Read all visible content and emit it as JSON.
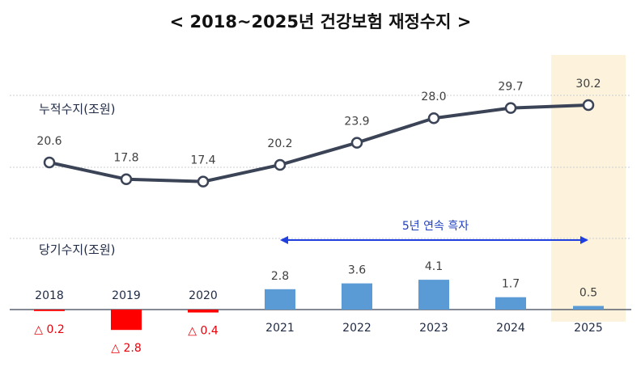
{
  "title": "<  2018~2025년  건강보험  재정수지  >",
  "chart_data": [
    {
      "type": "line",
      "label": "누적수지(조원)",
      "x": [
        "2018",
        "2019",
        "2020",
        "2021",
        "2022",
        "2023",
        "2024",
        "2025"
      ],
      "values": [
        20.6,
        17.8,
        17.4,
        20.2,
        23.9,
        28.0,
        29.7,
        30.2
      ],
      "value_labels": [
        "20.6",
        "17.8",
        "17.4",
        "20.2",
        "23.9",
        "28.0",
        "29.7",
        "30.2"
      ],
      "grid": true
    },
    {
      "type": "bar",
      "label": "당기수지(조원)",
      "categories": [
        "2018",
        "2019",
        "2020",
        "2021",
        "2022",
        "2023",
        "2024",
        "2025"
      ],
      "values": [
        -0.2,
        -2.8,
        -0.4,
        2.8,
        3.6,
        4.1,
        1.7,
        0.5
      ],
      "value_labels": [
        "△ 0.2",
        "△ 2.8",
        "△ 0.4",
        "2.8",
        "3.6",
        "4.1",
        "1.7",
        "0.5"
      ]
    }
  ],
  "annotation": {
    "text": "5년 연속 흑자",
    "from": "2021",
    "to": "2025"
  },
  "highlight": {
    "category": "2025",
    "color": "#fdf3dc"
  },
  "colors": {
    "line": "#3b4456",
    "positive_bar": "#5b9bd5",
    "negative_bar": "#ff0000",
    "arrow": "#1f3fdf"
  }
}
